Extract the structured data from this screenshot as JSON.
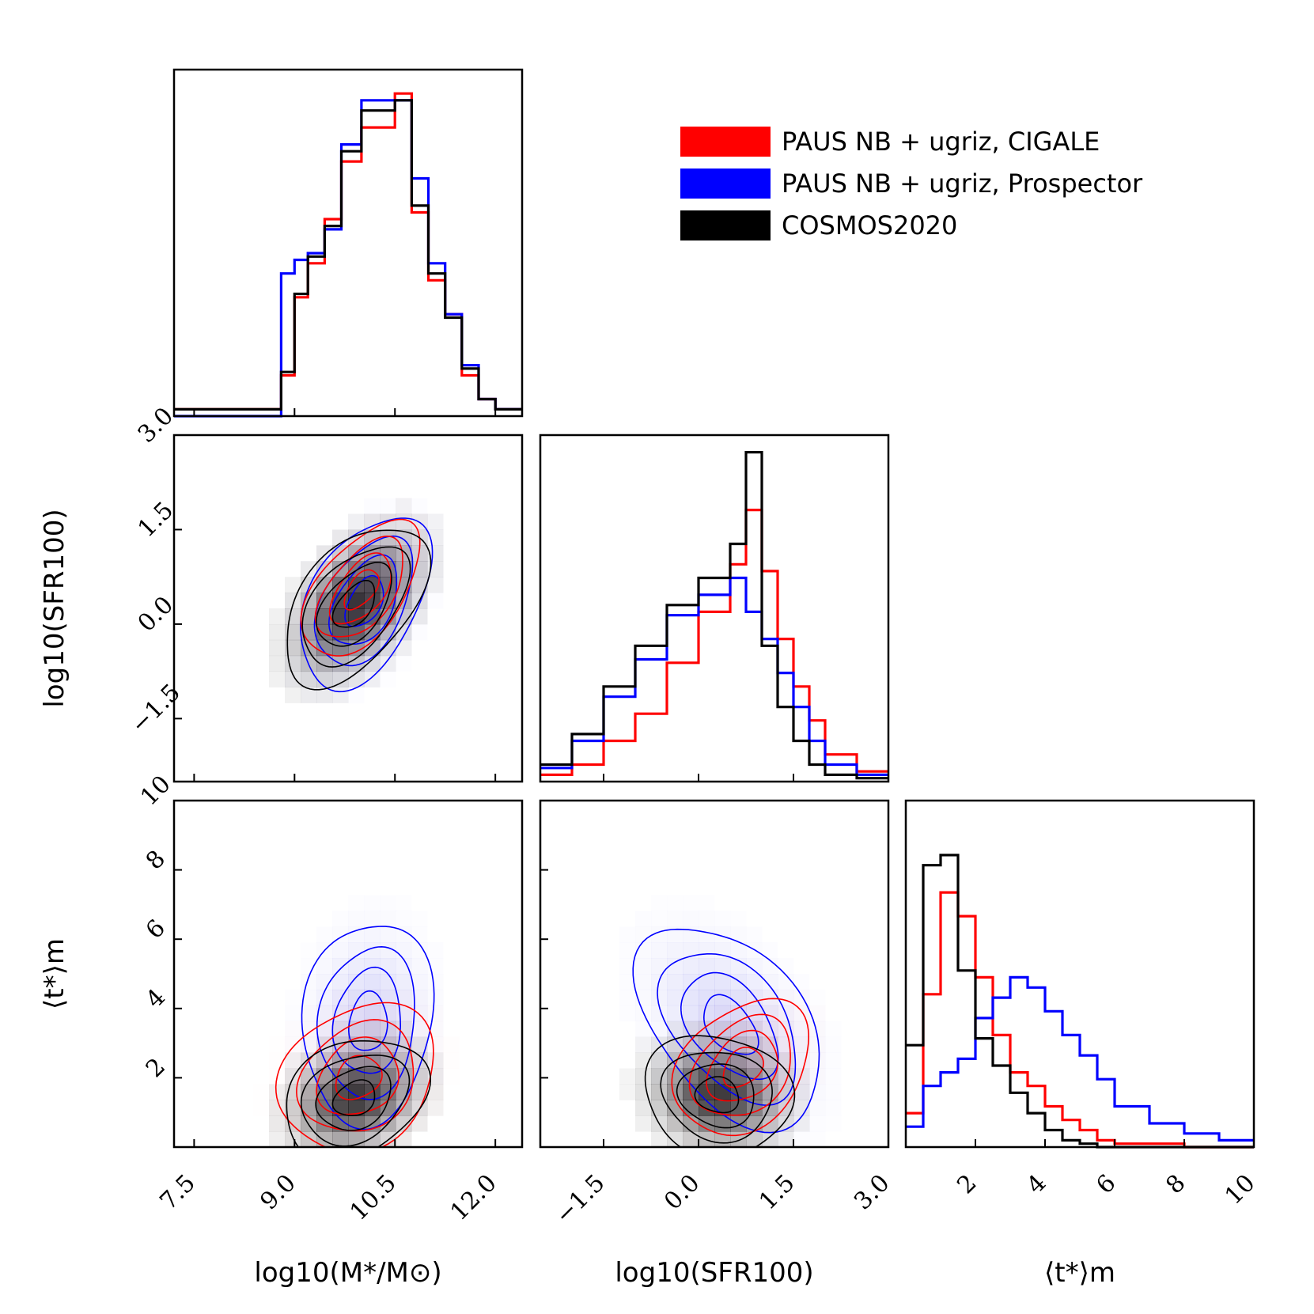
{
  "chart_data": {
    "type": "corner",
    "legend": [
      {
        "label": "PAUS NB + ugriz, CIGALE",
        "color": "#ff0000"
      },
      {
        "label": "PAUS NB + ugriz, Prospector",
        "color": "#0000ff"
      },
      {
        "label": "COSMOS2020",
        "color": "#000000"
      }
    ],
    "variables": [
      {
        "name": "mass",
        "label": "log10(M*/M⊙)",
        "range": [
          7.2,
          12.4
        ],
        "ticks": [
          7.5,
          9.0,
          10.5,
          12.0
        ],
        "tick_labels": [
          "7.5",
          "9.0",
          "10.5",
          "12.0"
        ]
      },
      {
        "name": "sfr",
        "label": "log10(SFR100)",
        "range": [
          -2.5,
          3.0
        ],
        "ticks": [
          -1.5,
          0.0,
          1.5,
          3.0
        ],
        "tick_labels": [
          "−1.5",
          "0.0",
          "1.5",
          "3.0"
        ]
      },
      {
        "name": "age",
        "label": "⟨t*⟩m",
        "range": [
          0,
          10
        ],
        "ticks": [
          2,
          4,
          6,
          8,
          10
        ],
        "tick_labels": [
          "2",
          "4",
          "6",
          "8",
          "10"
        ]
      }
    ],
    "histograms": {
      "mass": {
        "edges": [
          7.2,
          8.8,
          9.0,
          9.2,
          9.45,
          9.7,
          10.0,
          10.5,
          10.75,
          11.0,
          11.25,
          11.5,
          11.75,
          12.0,
          12.4
        ],
        "series": {
          "red": [
            0.02,
            0.12,
            0.35,
            0.45,
            0.58,
            0.75,
            0.85,
            0.95,
            0.6,
            0.4,
            0.3,
            0.12,
            0.05,
            0.02
          ],
          "blue": [
            0.0,
            0.42,
            0.46,
            0.48,
            0.55,
            0.8,
            0.93,
            0.93,
            0.7,
            0.45,
            0.3,
            0.15,
            0.05,
            0.02
          ],
          "black": [
            0.02,
            0.13,
            0.36,
            0.47,
            0.56,
            0.78,
            0.9,
            0.93,
            0.62,
            0.42,
            0.29,
            0.14,
            0.05,
            0.02
          ]
        },
        "ymax": 1.0
      },
      "sfr": {
        "edges": [
          -2.5,
          -2.0,
          -1.5,
          -1.0,
          -0.5,
          0.0,
          0.5,
          0.75,
          1.0,
          1.25,
          1.5,
          1.75,
          2.0,
          2.5,
          3.0
        ],
        "series": {
          "red": [
            0.02,
            0.05,
            0.12,
            0.2,
            0.35,
            0.5,
            0.64,
            0.8,
            0.62,
            0.42,
            0.28,
            0.18,
            0.08,
            0.03
          ],
          "blue": [
            0.04,
            0.12,
            0.25,
            0.36,
            0.49,
            0.55,
            0.6,
            0.5,
            0.42,
            0.32,
            0.22,
            0.12,
            0.05,
            0.02
          ],
          "black": [
            0.05,
            0.14,
            0.28,
            0.4,
            0.52,
            0.6,
            0.7,
            0.97,
            0.4,
            0.22,
            0.12,
            0.05,
            0.02,
            0.01
          ]
        },
        "ymax": 1.0
      },
      "age": {
        "edges": [
          0,
          0.5,
          1.0,
          1.5,
          2.0,
          2.5,
          3.0,
          3.5,
          4.0,
          4.5,
          5.0,
          5.5,
          6.0,
          7.0,
          8.0,
          9.0,
          10.0
        ],
        "series": {
          "red": [
            0.1,
            0.45,
            0.75,
            0.68,
            0.5,
            0.33,
            0.22,
            0.18,
            0.12,
            0.08,
            0.05,
            0.02,
            0.01,
            0.01,
            0.0,
            0.0
          ],
          "blue": [
            0.06,
            0.18,
            0.22,
            0.26,
            0.38,
            0.44,
            0.5,
            0.47,
            0.4,
            0.33,
            0.27,
            0.2,
            0.12,
            0.07,
            0.04,
            0.02
          ],
          "black": [
            0.3,
            0.83,
            0.86,
            0.52,
            0.32,
            0.24,
            0.16,
            0.1,
            0.05,
            0.02,
            0.01,
            0.0,
            0.0,
            0.0,
            0.0,
            0.0
          ]
        },
        "ymax": 1.0
      }
    },
    "densities": {
      "mass_sfr": {
        "red": {
          "center": [
            10.0,
            0.55
          ],
          "sigma": [
            0.45,
            0.55
          ],
          "rho": 0.55
        },
        "blue": {
          "center": [
            10.05,
            0.35
          ],
          "sigma": [
            0.5,
            0.7
          ],
          "rho": 0.45
        },
        "black": {
          "center": [
            9.9,
            0.3
          ],
          "sigma": [
            0.55,
            0.65
          ],
          "rho": 0.5
        }
      },
      "mass_age": {
        "red": {
          "center": [
            9.95,
            2.0
          ],
          "sigma": [
            0.6,
            1.1
          ],
          "rho": 0.2
        },
        "blue": {
          "center": [
            10.1,
            3.6
          ],
          "sigma": [
            0.5,
            1.5
          ],
          "rho": 0.1
        },
        "black": {
          "center": [
            9.9,
            1.4
          ],
          "sigma": [
            0.55,
            0.9
          ],
          "rho": 0.25
        }
      },
      "sfr_age": {
        "red": {
          "center": [
            0.7,
            2.3
          ],
          "sigma": [
            0.55,
            1.0
          ],
          "rho": 0.3
        },
        "blue": {
          "center": [
            0.5,
            3.5
          ],
          "sigma": [
            0.75,
            1.5
          ],
          "rho": -0.45
        },
        "black": {
          "center": [
            0.3,
            1.5
          ],
          "sigma": [
            0.6,
            0.9
          ],
          "rho": -0.1
        }
      }
    },
    "contour_levels": [
      0.15,
      0.35,
      0.6,
      0.85
    ]
  }
}
